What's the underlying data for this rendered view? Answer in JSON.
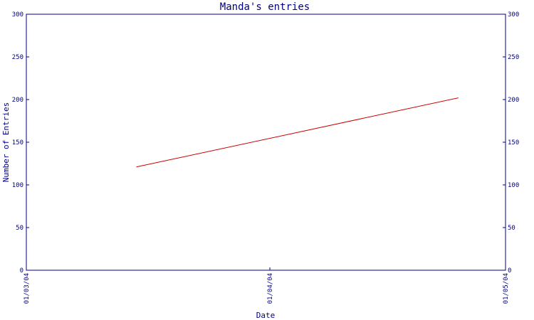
{
  "chart_data": {
    "type": "line",
    "title": "Manda's entries",
    "xlabel": "Date",
    "ylabel": "Number of Entries",
    "x_ticks": [
      "01/03/04",
      "01/04/04",
      "01/05/04"
    ],
    "y_ticks": [
      "0",
      "50",
      "100",
      "150",
      "200",
      "250",
      "300"
    ],
    "ylim": [
      0,
      300
    ],
    "grid": false,
    "series": [
      {
        "x": [
          "2004-03-15",
          "2004-04-25"
        ],
        "values": [
          121,
          202
        ]
      }
    ],
    "colors": {
      "axis": "#000080",
      "line": "#cc0000",
      "background": "#ffffff"
    }
  }
}
